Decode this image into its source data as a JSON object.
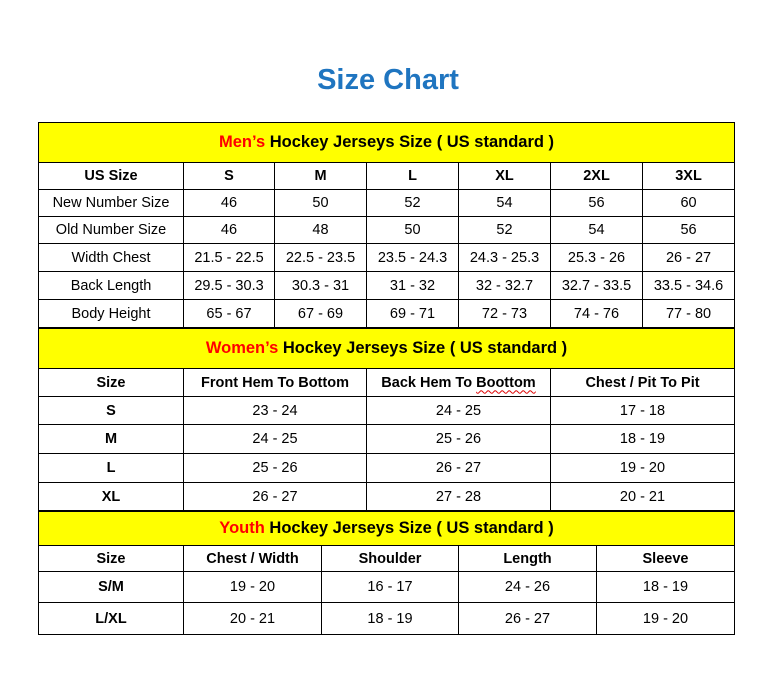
{
  "title": "Size Chart",
  "colors": {
    "title": "#1f75c0",
    "section_bg": "#ffff00",
    "accent_red": "#ff0000"
  },
  "men": {
    "highlight": "Men’s",
    "heading": " Hockey Jerseys Size ( US standard )",
    "columns": [
      "US Size",
      "S",
      "M",
      "L",
      "XL",
      "2XL",
      "3XL"
    ],
    "rows": [
      [
        "New Number Size",
        "46",
        "50",
        "52",
        "54",
        "56",
        "60"
      ],
      [
        "Old Number Size",
        "46",
        "48",
        "50",
        "52",
        "54",
        "56"
      ],
      [
        "Width Chest",
        "21.5 - 22.5",
        "22.5 - 23.5",
        "23.5 - 24.3",
        "24.3 - 25.3",
        "25.3 - 26",
        "26 - 27"
      ],
      [
        "Back Length",
        "29.5 - 30.3",
        "30.3 - 31",
        "31 - 32",
        "32 - 32.7",
        "32.7 - 33.5",
        "33.5 - 34.6"
      ],
      [
        "Body Height",
        "65 - 67",
        "67 - 69",
        "69 - 71",
        "72 - 73",
        "74 - 76",
        "77 - 80"
      ]
    ]
  },
  "women": {
    "highlight": "Women’s",
    "heading": " Hockey Jerseys Size ( US standard )",
    "columns": [
      "Size",
      "Front Hem To Bottom",
      "Back Hem To Boottom",
      "Chest / Pit To Pit"
    ],
    "rows": [
      [
        "S",
        "23 - 24",
        "24 - 25",
        "17 - 18"
      ],
      [
        "M",
        "24 - 25",
        "25 - 26",
        "18 - 19"
      ],
      [
        "L",
        "25 - 26",
        "26 - 27",
        "19 - 20"
      ],
      [
        "XL",
        "26 - 27",
        "27 - 28",
        "20 - 21"
      ]
    ]
  },
  "youth": {
    "highlight": "Youth",
    "heading": " Hockey Jerseys Size ( US standard )",
    "columns": [
      "Size",
      "Chest / Width",
      "Shoulder",
      "Length",
      "Sleeve"
    ],
    "rows": [
      [
        "S/M",
        "19 - 20",
        "16 - 17",
        "24 - 26",
        "18 - 19"
      ],
      [
        "L/XL",
        "20 - 21",
        "18 - 19",
        "26 - 27",
        "19 - 20"
      ]
    ]
  }
}
